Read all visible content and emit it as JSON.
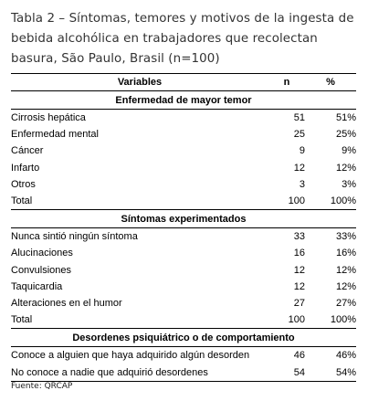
{
  "caption": "Tabla 2 – Síntomas, temores y motivos de la ingesta de bebida alcohólica en trabajadores que recolectan basura, São Paulo, Brasil (n=100)",
  "header": {
    "variables": "Variables",
    "n": "n",
    "pct": "%"
  },
  "sections": [
    {
      "title": "Enfermedad de mayor temor",
      "rows": [
        {
          "label": "Cirrosis hepática",
          "n": "51",
          "pct": "51%"
        },
        {
          "label": "Enfermedad mental",
          "n": "25",
          "pct": "25%"
        },
        {
          "label": "Cáncer",
          "n": "9",
          "pct": "9%"
        },
        {
          "label": "Infarto",
          "n": "12",
          "pct": "12%"
        },
        {
          "label": "Otros",
          "n": "3",
          "pct": "3%"
        },
        {
          "label": "Total",
          "n": "100",
          "pct": "100%"
        }
      ]
    },
    {
      "title": "Síntomas experimentados",
      "rows": [
        {
          "label": "Nunca sintió ningún síntoma",
          "n": "33",
          "pct": "33%"
        },
        {
          "label": "Alucinaciones",
          "n": "16",
          "pct": "16%"
        },
        {
          "label": "Convulsiones",
          "n": "12",
          "pct": "12%"
        },
        {
          "label": "Taquicardia",
          "n": "12",
          "pct": "12%"
        },
        {
          "label": "Alteraciones en el humor",
          "n": "27",
          "pct": "27%"
        },
        {
          "label": "Total",
          "n": "100",
          "pct": "100%"
        }
      ]
    },
    {
      "title": "Desordenes psiquiátrico o de comportamiento",
      "rows": [
        {
          "label": "Conoce a alguien que haya adquirido algún desorden",
          "n": "46",
          "pct": "46%"
        },
        {
          "label": "No conoce a nadie que adquirió desordenes",
          "n": "54",
          "pct": "54%"
        }
      ]
    }
  ],
  "source": "Fuente: QRCAP"
}
